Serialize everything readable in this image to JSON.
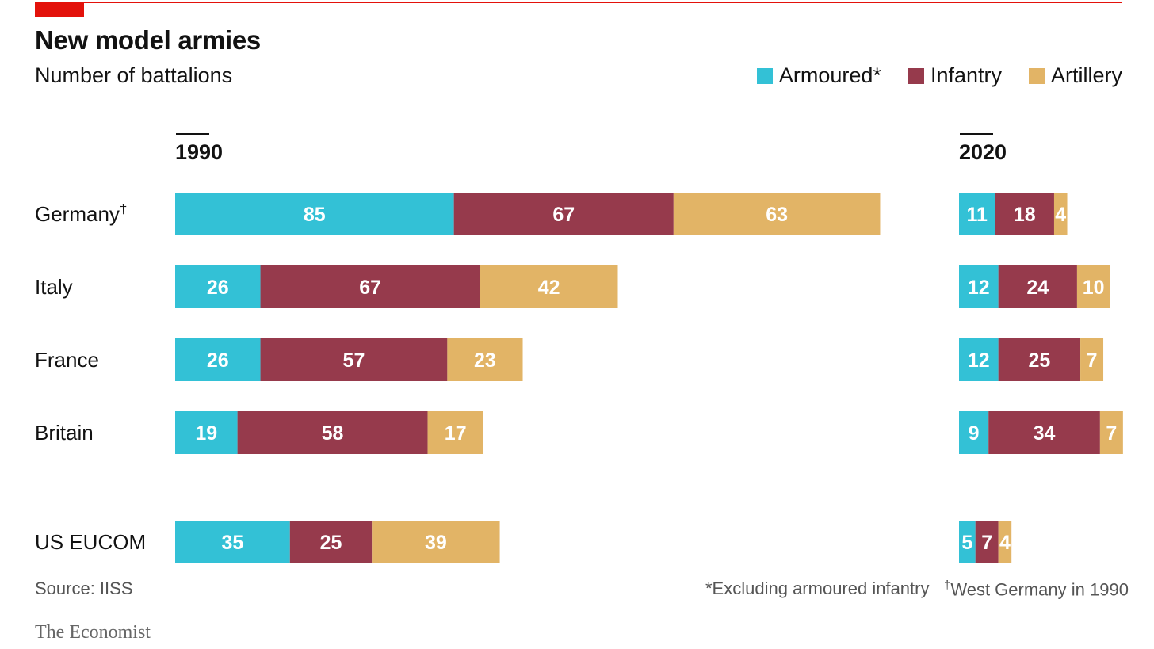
{
  "header": {
    "title": "New model armies",
    "subtitle": "Number of battalions"
  },
  "legend": [
    {
      "label": "Armoured*",
      "color": "#33c1d6"
    },
    {
      "label": "Infantry",
      "color": "#963a4c"
    },
    {
      "label": "Artillery",
      "color": "#e2b466"
    }
  ],
  "footer": {
    "source": "Source: IISS",
    "note_armoured": "*Excluding armoured infantry",
    "note_germany_mark": "†",
    "note_germany": "West Germany in 1990",
    "brand": "The Economist"
  },
  "chart_data": {
    "type": "bar",
    "orientation": "horizontal",
    "stacked": true,
    "categories": [
      "Germany†",
      "Italy",
      "France",
      "Britain",
      "US EUCOM"
    ],
    "panels": [
      {
        "label": "1990",
        "series": [
          {
            "name": "Armoured*",
            "values": [
              85,
              26,
              26,
              19,
              35
            ]
          },
          {
            "name": "Infantry",
            "values": [
              67,
              67,
              57,
              58,
              25
            ]
          },
          {
            "name": "Artillery",
            "values": [
              63,
              42,
              23,
              17,
              39
            ]
          }
        ]
      },
      {
        "label": "2020",
        "series": [
          {
            "name": "Armoured*",
            "values": [
              11,
              12,
              12,
              9,
              5
            ]
          },
          {
            "name": "Infantry",
            "values": [
              18,
              24,
              25,
              34,
              7
            ]
          },
          {
            "name": "Artillery",
            "values": [
              4,
              10,
              7,
              7,
              4
            ]
          }
        ]
      }
    ],
    "legend_position": "top-right",
    "grid": false
  }
}
